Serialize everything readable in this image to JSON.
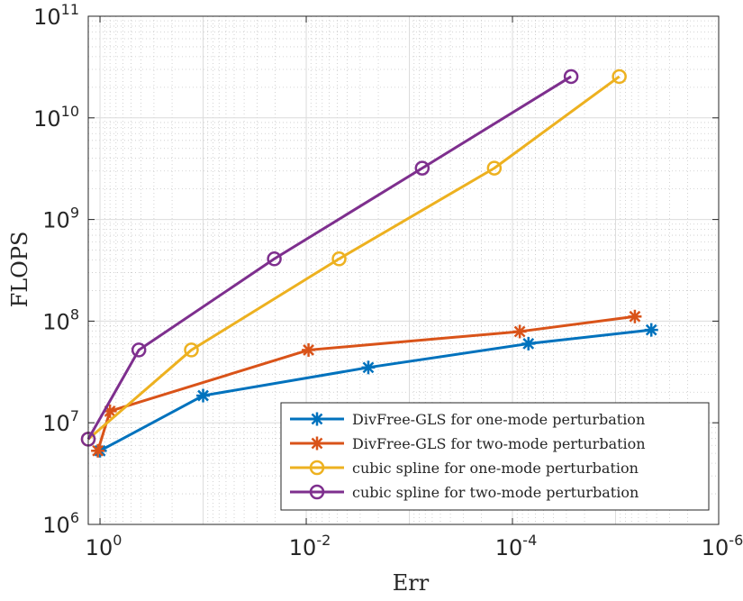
{
  "chart_data": {
    "type": "line",
    "title": "",
    "xlabel": "Err",
    "ylabel": "FLOPS",
    "xscale": "log",
    "yscale": "log",
    "xreverse": true,
    "xlim": [
      1.3,
      1e-06
    ],
    "ylim": [
      1000000.0,
      100000000000.0
    ],
    "grid": true,
    "minor_grid": true,
    "legend_position": "bottom-right",
    "x_ticks": [
      {
        "value": 1,
        "base": "10",
        "exp": "0"
      },
      {
        "value": 0.01,
        "base": "10",
        "exp": "-2"
      },
      {
        "value": 0.0001,
        "base": "10",
        "exp": "-4"
      },
      {
        "value": 1e-06,
        "base": "10",
        "exp": "-6"
      }
    ],
    "y_ticks": [
      {
        "value": 1000000,
        "base": "10",
        "exp": "6"
      },
      {
        "value": 10000000,
        "base": "10",
        "exp": "7"
      },
      {
        "value": 100000000,
        "base": "10",
        "exp": "8"
      },
      {
        "value": 1000000000,
        "base": "10",
        "exp": "9"
      },
      {
        "value": 10000000000,
        "base": "10",
        "exp": "10"
      },
      {
        "value": 100000000000,
        "base": "10",
        "exp": "11"
      }
    ],
    "series": [
      {
        "name": "DivFree-GLS for one-mode perturbation",
        "color": "#0072bd",
        "marker": "asterisk",
        "x": [
          1.0,
          0.1,
          0.0025,
          7e-05,
          4.5e-06
        ],
        "y": [
          5300000,
          18500000,
          35000000,
          60000000,
          82000000
        ]
      },
      {
        "name": "DivFree-GLS for two-mode perturbation",
        "color": "#d95319",
        "marker": "asterisk",
        "x": [
          1.05,
          0.8,
          0.0095,
          8.5e-05,
          6.5e-06
        ],
        "y": [
          5300000,
          13000000,
          52000000,
          79000000,
          111000000
        ]
      },
      {
        "name": "cubic spline for one-mode perturbation",
        "color": "#edb120",
        "marker": "circle",
        "x": [
          1.3,
          0.13,
          0.0048,
          0.00015,
          9.2e-06
        ],
        "y": [
          6900000,
          52000000,
          410000000,
          3200000000,
          25500000000
        ]
      },
      {
        "name": "cubic spline for two-mode perturbation",
        "color": "#7e2f8e",
        "marker": "circle",
        "x": [
          1.3,
          0.42,
          0.0204,
          0.00075,
          2.7e-05
        ],
        "y": [
          6900000,
          52000000,
          410000000,
          3200000000,
          25500000000
        ]
      }
    ]
  }
}
